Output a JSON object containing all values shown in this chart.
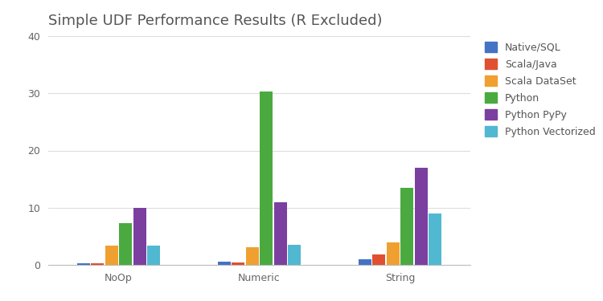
{
  "title": "Simple UDF Performance Results (R Excluded)",
  "categories": [
    "NoOp",
    "Numeric",
    "String"
  ],
  "series": [
    {
      "label": "Native/SQL",
      "color": "#4472c4",
      "values": [
        0.3,
        0.5,
        1.0
      ]
    },
    {
      "label": "Scala/Java",
      "color": "#e05030",
      "values": [
        0.25,
        0.4,
        1.8
      ]
    },
    {
      "label": "Scala DataSet",
      "color": "#f0a030",
      "values": [
        3.3,
        3.1,
        4.0
      ]
    },
    {
      "label": "Python",
      "color": "#4aaa40",
      "values": [
        7.3,
        30.3,
        13.5
      ]
    },
    {
      "label": "Python PyPy",
      "color": "#7b3fa0",
      "values": [
        10.0,
        11.0,
        17.0
      ]
    },
    {
      "label": "Python Vectorized",
      "color": "#50b8d0",
      "values": [
        3.3,
        3.5,
        9.0
      ]
    }
  ],
  "ylim": [
    0,
    40
  ],
  "yticks": [
    0,
    10,
    20,
    30,
    40
  ],
  "title_fontsize": 13,
  "tick_fontsize": 9,
  "legend_fontsize": 9,
  "background_color": "#ffffff",
  "grid_color": "#dddddd",
  "bar_width": 0.1,
  "figsize": [
    7.5,
    3.75
  ],
  "dpi": 100
}
